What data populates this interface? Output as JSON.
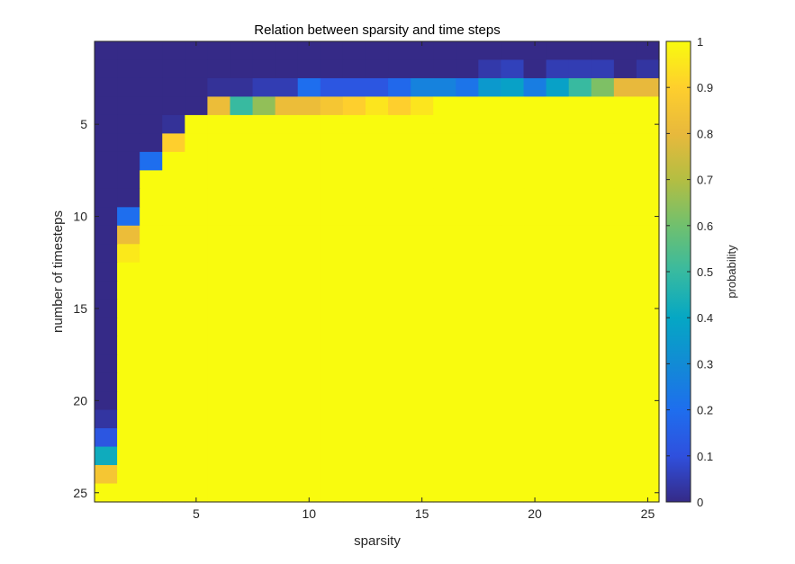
{
  "chart_data": {
    "type": "heatmap",
    "title": "Relation between sparsity and time steps",
    "xlabel": "sparsity",
    "ylabel": "number of timesteps",
    "x_range": [
      1,
      25
    ],
    "y_range": [
      1,
      25
    ],
    "y_direction": "reversed",
    "x_ticks": [
      5,
      10,
      15,
      20,
      25
    ],
    "y_ticks": [
      5,
      10,
      15,
      20,
      25
    ],
    "colorbar": {
      "label": "probability",
      "range": [
        0,
        1
      ],
      "ticks": [
        "0",
        "0.1",
        "0.2",
        "0.3",
        "0.4",
        "0.5",
        "0.6",
        "0.7",
        "0.8",
        "0.9",
        "1"
      ],
      "colormap": "parula"
    },
    "grid": false,
    "values": [
      [
        0,
        0,
        0,
        0,
        0,
        0,
        0,
        0,
        0,
        0,
        0,
        0,
        0,
        0,
        0,
        0,
        0,
        0,
        0,
        0,
        0,
        0,
        0,
        0,
        0
      ],
      [
        0,
        0,
        0,
        0,
        0,
        0,
        0,
        0,
        0,
        0,
        0,
        0,
        0,
        0,
        0,
        0,
        0,
        0.04,
        0.06,
        0,
        0.05,
        0.05,
        0.05,
        0,
        0.03
      ],
      [
        0,
        0,
        0,
        0,
        0,
        0.02,
        0.02,
        0.05,
        0.05,
        0.2,
        0.12,
        0.12,
        0.12,
        0.18,
        0.27,
        0.27,
        0.22,
        0.35,
        0.38,
        0.25,
        0.38,
        0.5,
        0.62,
        0.8,
        0.8
      ],
      [
        0,
        0,
        0,
        0,
        0,
        0.82,
        0.5,
        0.65,
        0.82,
        0.82,
        0.86,
        0.9,
        0.95,
        0.9,
        0.95,
        1,
        1,
        1,
        1,
        1,
        1,
        1,
        1,
        1,
        1
      ],
      [
        0,
        0,
        0,
        0.02,
        1,
        1,
        1,
        1,
        1,
        1,
        1,
        1,
        1,
        1,
        1,
        1,
        1,
        1,
        1,
        1,
        1,
        1,
        1,
        1,
        1
      ],
      [
        0,
        0,
        0,
        0.9,
        1,
        1,
        1,
        1,
        1,
        1,
        1,
        1,
        1,
        1,
        1,
        1,
        1,
        1,
        1,
        1,
        1,
        1,
        1,
        1,
        1
      ],
      [
        0,
        0,
        0.2,
        1,
        1,
        1,
        1,
        1,
        1,
        1,
        1,
        1,
        1,
        1,
        1,
        1,
        1,
        1,
        1,
        1,
        1,
        1,
        1,
        1,
        1
      ],
      [
        0,
        0,
        1,
        1,
        1,
        1,
        1,
        1,
        1,
        1,
        1,
        1,
        1,
        1,
        1,
        1,
        1,
        1,
        1,
        1,
        1,
        1,
        1,
        1,
        1
      ],
      [
        0,
        0,
        1,
        1,
        1,
        1,
        1,
        1,
        1,
        1,
        1,
        1,
        1,
        1,
        1,
        1,
        1,
        1,
        1,
        1,
        1,
        1,
        1,
        1,
        1
      ],
      [
        0,
        0.2,
        1,
        1,
        1,
        1,
        1,
        1,
        1,
        1,
        1,
        1,
        1,
        1,
        1,
        1,
        1,
        1,
        1,
        1,
        1,
        1,
        1,
        1,
        1
      ],
      [
        0,
        0.82,
        1,
        1,
        1,
        1,
        1,
        1,
        1,
        1,
        1,
        1,
        1,
        1,
        1,
        1,
        1,
        1,
        1,
        1,
        1,
        1,
        1,
        1,
        1
      ],
      [
        0,
        0.96,
        1,
        1,
        1,
        1,
        1,
        1,
        1,
        1,
        1,
        1,
        1,
        1,
        1,
        1,
        1,
        1,
        1,
        1,
        1,
        1,
        1,
        1,
        1
      ],
      [
        0,
        1,
        1,
        1,
        1,
        1,
        1,
        1,
        1,
        1,
        1,
        1,
        1,
        1,
        1,
        1,
        1,
        1,
        1,
        1,
        1,
        1,
        1,
        1,
        1
      ],
      [
        0,
        1,
        1,
        1,
        1,
        1,
        1,
        1,
        1,
        1,
        1,
        1,
        1,
        1,
        1,
        1,
        1,
        1,
        1,
        1,
        1,
        1,
        1,
        1,
        1
      ],
      [
        0,
        1,
        1,
        1,
        1,
        1,
        1,
        1,
        1,
        1,
        1,
        1,
        1,
        1,
        1,
        1,
        1,
        1,
        1,
        1,
        1,
        1,
        1,
        1,
        1
      ],
      [
        0,
        1,
        1,
        1,
        1,
        1,
        1,
        1,
        1,
        1,
        1,
        1,
        1,
        1,
        1,
        1,
        1,
        1,
        1,
        1,
        1,
        1,
        1,
        1,
        1
      ],
      [
        0,
        1,
        1,
        1,
        1,
        1,
        1,
        1,
        1,
        1,
        1,
        1,
        1,
        1,
        1,
        1,
        1,
        1,
        1,
        1,
        1,
        1,
        1,
        1,
        1
      ],
      [
        0,
        1,
        1,
        1,
        1,
        1,
        1,
        1,
        1,
        1,
        1,
        1,
        1,
        1,
        1,
        1,
        1,
        1,
        1,
        1,
        1,
        1,
        1,
        1,
        1
      ],
      [
        0,
        1,
        1,
        1,
        1,
        1,
        1,
        1,
        1,
        1,
        1,
        1,
        1,
        1,
        1,
        1,
        1,
        1,
        1,
        1,
        1,
        1,
        1,
        1,
        1
      ],
      [
        0,
        1,
        1,
        1,
        1,
        1,
        1,
        1,
        1,
        1,
        1,
        1,
        1,
        1,
        1,
        1,
        1,
        1,
        1,
        1,
        1,
        1,
        1,
        1,
        1
      ],
      [
        0.03,
        1,
        1,
        1,
        1,
        1,
        1,
        1,
        1,
        1,
        1,
        1,
        1,
        1,
        1,
        1,
        1,
        1,
        1,
        1,
        1,
        1,
        1,
        1,
        1
      ],
      [
        0.12,
        1,
        1,
        1,
        1,
        1,
        1,
        1,
        1,
        1,
        1,
        1,
        1,
        1,
        1,
        1,
        1,
        1,
        1,
        1,
        1,
        1,
        1,
        1,
        1
      ],
      [
        0.42,
        1,
        1,
        1,
        1,
        1,
        1,
        1,
        1,
        1,
        1,
        1,
        1,
        1,
        1,
        1,
        1,
        1,
        1,
        1,
        1,
        1,
        1,
        1,
        1
      ],
      [
        0.86,
        1,
        1,
        1,
        1,
        1,
        1,
        1,
        1,
        1,
        1,
        1,
        1,
        1,
        1,
        1,
        1,
        1,
        1,
        1,
        1,
        1,
        1,
        1,
        1
      ],
      [
        1,
        1,
        1,
        1,
        1,
        1,
        1,
        1,
        1,
        1,
        1,
        1,
        1,
        1,
        1,
        1,
        1,
        1,
        1,
        1,
        1,
        1,
        1,
        1,
        1
      ]
    ]
  }
}
